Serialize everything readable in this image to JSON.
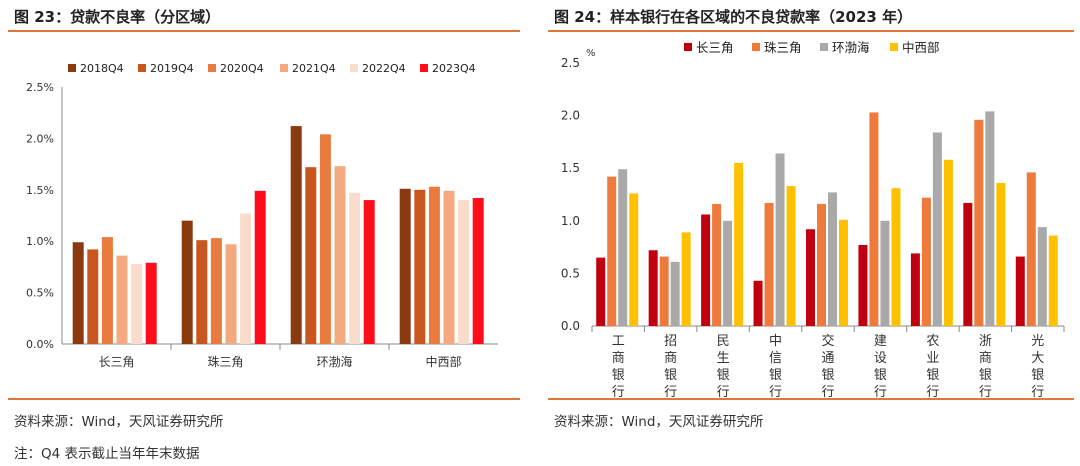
{
  "left": {
    "title": "图 23：贷款不良率（分区域）",
    "source": "资料来源：Wind，天风证券研究所",
    "note": "注：Q4 表示截止当年年末数据"
  },
  "right": {
    "title": "图 24：样本银行在各区域的不良贷款率（2023 年）",
    "source": "资料来源：Wind，天风证券研究所"
  },
  "chart_data": [
    {
      "type": "bar",
      "title": "图 23：贷款不良率（分区域）",
      "categories": [
        "长三角",
        "珠三角",
        "环渤海",
        "中西部"
      ],
      "series": [
        {
          "name": "2018Q4",
          "color": "#8B3A10",
          "values": [
            0.99,
            1.2,
            2.12,
            1.51
          ]
        },
        {
          "name": "2019Q4",
          "color": "#C8561E",
          "values": [
            0.92,
            1.01,
            1.72,
            1.5
          ]
        },
        {
          "name": "2020Q4",
          "color": "#E97B3E",
          "values": [
            1.04,
            1.03,
            2.04,
            1.53
          ]
        },
        {
          "name": "2021Q4",
          "color": "#F4A97F",
          "values": [
            0.86,
            0.97,
            1.73,
            1.49
          ]
        },
        {
          "name": "2022Q4",
          "color": "#F9DCCB",
          "values": [
            0.78,
            1.27,
            1.47,
            1.4
          ]
        },
        {
          "name": "2023Q4",
          "color": "#FF0D1A",
          "values": [
            0.79,
            1.49,
            1.4,
            1.42
          ]
        }
      ],
      "yticks": [
        "0.0%",
        "0.5%",
        "1.0%",
        "1.5%",
        "2.0%",
        "2.5%"
      ],
      "ylim": [
        0,
        2.5
      ],
      "legend": "top"
    },
    {
      "type": "bar",
      "title": "图 24：样本银行在各区域的不良贷款率（2023 年）",
      "ylabel": "%",
      "categories": [
        "工商银行",
        "招商银行",
        "民生银行",
        "中信银行",
        "交通银行",
        "建设银行",
        "农业银行",
        "浙商银行",
        "光大银行"
      ],
      "series": [
        {
          "name": "长三角",
          "color": "#C0000F",
          "values": [
            0.65,
            0.72,
            1.06,
            0.43,
            0.92,
            0.77,
            0.69,
            1.17,
            0.66
          ]
        },
        {
          "name": "珠三角",
          "color": "#EE7A3C",
          "values": [
            1.42,
            0.66,
            1.16,
            1.17,
            1.16,
            2.03,
            1.22,
            1.96,
            1.46
          ]
        },
        {
          "name": "环渤海",
          "color": "#A9A9A9",
          "values": [
            1.49,
            0.61,
            1.0,
            1.64,
            1.27,
            1.0,
            1.84,
            2.04,
            0.94
          ]
        },
        {
          "name": "中西部",
          "color": "#FFC000",
          "values": [
            1.26,
            0.89,
            1.55,
            1.33,
            1.01,
            1.31,
            1.58,
            1.36,
            0.86
          ]
        }
      ],
      "yticks": [
        "0.0",
        "0.5",
        "1.0",
        "1.5",
        "2.0",
        "2.5"
      ],
      "ylim": [
        0,
        2.5
      ],
      "legend": "top"
    }
  ]
}
